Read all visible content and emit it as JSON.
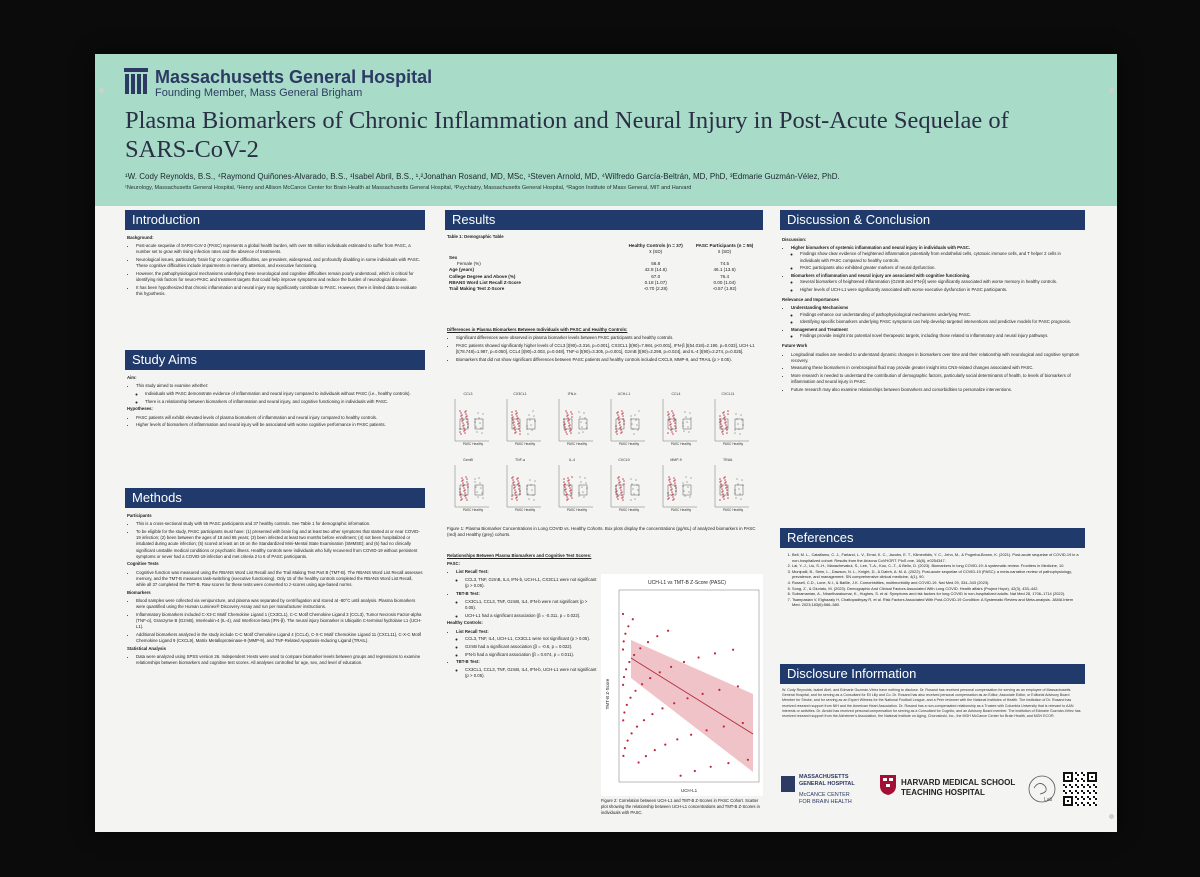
{
  "header": {
    "org_name": "Massachusetts General Hospital",
    "org_sub": "Founding Member, Mass General Brigham",
    "title": "Plasma Biomarkers of Chronic Inflammation and Neural Injury in Post-Acute Sequelae of SARS-CoV-2",
    "authors": "¹W. Cody Reynolds, B.S., ⁴Raymond Quiñones-Alvarado, B.S., ¹Isabel Abril, B.S., ¹,²Jonathan Rosand, MD, MSc, ¹Steven Arnold, MD, ⁴Wilfredo García-Beltrán, MD, PhD, ³Edmarie Guzmán-Vélez, PhD.",
    "affiliations": "¹Neurology, Massachusetts General Hospital, ²Henry and Allison McCance Center for Brain Health at Massachusetts General Hospital, ³Psychiatry, Massachusetts General Hospital, ⁴Ragon Institute of Mass General, MIT and Harvard"
  },
  "intro": {
    "heading": "Introduction",
    "sub": "Background:",
    "bullets": [
      "Post-acute sequelae of SARS-CoV-2 (PASC) represents a global health burden, with over 65 million individuals estimated to suffer from PASC, a number set to grow with rising infection rates and the absence of treatments.",
      "Neurological issues, particularly 'brain fog' or cognitive difficulties, are prevalent, widespread, and profoundly disabling in some individuals with PASC. These cognitive difficulties include impairments in memory, attention, and executive functioning.",
      "However, the pathophysiological mechanisms underlying these neurological and cognitive difficulties remain poorly understood, which is critical for identifying risk factors for neuro-PASC and treatment targets that could help improve symptoms and reduce the burden of neurological disease.",
      "It has been hypothesized that chronic inflammation and neural injury may significantly contribute to PASC. However, there is limited data to evaluate this hypothesis."
    ]
  },
  "aims": {
    "heading": "Study Aims",
    "aim_label": "Aim:",
    "aim_intro": "This study aimed to examine whether:",
    "aims": [
      "Individuals with PASC demonstrate evidence of inflammation and neural injury compared to individuals without PASC (i.e., healthy controls).",
      "There is a relationship between biomarkers of inflammation and neural injury, and cognitive functioning in individuals with PASC."
    ],
    "hyp_label": "Hypotheses:",
    "hyps": [
      "PASC patients will exhibit elevated levels of plasma biomarkers of inflammation and neural injury compared to healthy controls.",
      "Higher levels of biomarkers of inflammation and neural injury will be associated with worse cognitive performance in PASC patients."
    ]
  },
  "methods": {
    "heading": "Methods",
    "participants_label": "Participants",
    "participants": [
      "This is a cross-sectional study with 55 PASC participants and 37 healthy controls. See Table 1 for demographic information.",
      "To be eligible for the study, PASC participants must have: (1) presented with brain fog and at least two other symptoms that started at or near COVID-19 infection; (2) been between the ages of 18 and 65 years; (3) been infected at least two months before enrollment; (4) not been hospitalized or intubated during acute infection; (5) scored at least an 18 on the Standardized Mini-Mental State Examination (SMMSE); and (6) had no clinically significant unstable medical conditions or psychiatric illness. Healthy controls were individuals who fully recovered from COVID-19 without persistent symptoms or never had a COVID-19 infection and met criteria 2 to 6 of PASC participants."
    ],
    "cog_label": "Cognitive Tests",
    "cog": [
      "Cognitive function was measured using the RBANS Word List Recall and the Trail Making Test Part B (TMT-B). The RBANS Word List Recall assesses memory, and the TMT-B measures task-switching (executive functioning). Only 15 of the healthy controls completed the RBANS Word List Recall, while all 37 completed the TMT-B. Raw scores for these tests were converted to z-scores using age-based norms."
    ],
    "bio_label": "Biomarkers",
    "bio": [
      "Blood samples were collected via venipuncture, and plasma was separated by centrifugation and stored at -80°C until analysis. Plasma biomarkers were quantified using the Human Luminex® Discovery Assay and run per manufacturer instructions.",
      "Inflammatory biomarkers included C-X3-C Motif Chemokine Ligand 1 (CX3CL1), C-C Motif Chemokine Ligand 3 (CCL3), Tumor Necrosis Factor-alpha (TNF-α), Granzyme B (GzmB), Interleukin-4 (IL-4), and Interferon-beta (IFN-β). The neural injury biomarker is Ubiquitin C-terminal hydrolase L1 (UCH-L1).",
      "Additional biomarkers analyzed in the study include C-C Motif Chemokine Ligand 4 (CCL4), C-X-C Motif Chemokine Ligand 11 (CXCL11), C-X-C Motif Chemokine Ligand 9 (CXCL9), Matrix Metalloproteinase-9 (MMP-9), and TNF-Related Apoptosis-Inducing Ligand (TRAIL)."
    ],
    "stat_label": "Statistical Analysis",
    "stat": [
      "Data were analyzed using SPSS version 26. Independent t-tests were used to compare biomarker levels between groups and regressions to examine relationships between biomarkers and cognitive test scores. All analyses controlled for age, sex, and level of education."
    ]
  },
  "results": {
    "heading": "Results",
    "table_title": "Table 1: Demographic Table",
    "col_hc": "Healthy Controls (n = 37)",
    "col_pasc": "PASC Participants (n = 55)",
    "col_stat": "x̄ (SD)",
    "rows": [
      {
        "label": "Sex",
        "hc": "",
        "pasc": "",
        "bold": true
      },
      {
        "label": "Female (%)",
        "hc": "56.8",
        "pasc": "74.5",
        "bold": false
      },
      {
        "label": "Age (years)",
        "hc": "42.8 (14.6)",
        "pasc": "46.1 (13.6)",
        "bold": true
      },
      {
        "label": "College Degree and Above (%)",
        "hc": "67.0",
        "pasc": "76.4",
        "bold": true
      },
      {
        "label": "RBANS Word List Recall Z-Score",
        "hc": "0.18 (1.07)",
        "pasc": "0.00 (1.04)",
        "bold": true
      },
      {
        "label": "Trail Making Test Z-Score",
        "hc": "-0.70 (2.28)",
        "pasc": "-0.57 (1.92)",
        "bold": true
      }
    ],
    "diff_title": "Differences in Plasma Biomarkers Between Individuals with PASC and Healthy Controls:",
    "diff_bullets": [
      "Significant differences were observed in plasma biomarker levels between PASC participants and healthy controls.",
      "PASC patients showed significantly higher levels of CCL3 [t(90)=3.316, p=0.001], CX3CL1 [t(90)=7.984, p<0.001], IFN-β [t(54.018)=2.190, p=0.033], UCH-L1 [t(78.748)=1.987, p=0.050], CCL4 [t(90)=2.003, p=0.048], TNF-α [t(90)=3.305, p=0.001], GzmB [t(90)=2.298, p=0.024], and IL-4 [t(90)=2.274, p=0.025].",
      "Biomarkers that did not show significant differences between PASC patients and healthy controls included CXCL9, MMP-9, and TRAIL (p > 0.05)."
    ],
    "panels": [
      {
        "label": "CCL3"
      },
      {
        "label": "CX3CL1"
      },
      {
        "label": "IFN-b"
      },
      {
        "label": "UCH-L1"
      },
      {
        "label": "CCL4"
      },
      {
        "label": "CXCL11"
      },
      {
        "label": "GzmB"
      },
      {
        "label": "TNF-a"
      },
      {
        "label": "IL-4"
      },
      {
        "label": "CXCL9"
      },
      {
        "label": "MMP-9"
      },
      {
        "label": "TRAIL"
      }
    ],
    "panel_axis": "PASC  Healthy",
    "fig1_caption": "Figure 1: Plasma Biomarker Concentrations in Long COVID vs. Healthy Cohorts. Box plots display the concentrations (pg/mL) of analyzed biomarkers in PASC (red) and Healthy (grey) cohorts.",
    "rel_title": "Relationships Between Plasma Biomarkers and Cognitive Test Scores:",
    "pasc_label": "PASC:",
    "pasc_list_label": "List Recall Test:",
    "pasc_list": [
      "CCL3, TNF, GzmB, IL4, IFN-b, UCH-L1, CX3CL1 were not significant (p > 0.05)."
    ],
    "pasc_tmt_label": "TBT-B Test:",
    "pasc_tmt": [
      "CX3CL1, CCL3, TNF, GzmB, IL4, IFN-b were not significant (p > 0.05).",
      "UCH-L1 had a significant association (β = -0.311, p = 0.022)."
    ],
    "hc_label": "Healthy Controls:",
    "hc_list_label": "List Recall Test:",
    "hc_list": [
      "CCL3, TNF, IL4, UCH-L1, CX3CL1 were not significant (p > 0.05).",
      "GzmB had a significant association (β = -0.6, p = 0.022).",
      "IFN-b had a significant association (β = 0.674, p = 0.011)."
    ],
    "hc_tmt_label": "TBT-B Test:",
    "hc_tmt": [
      "CX3CL1, CCL3, TNF, GzmB, IL4, IFN-b, UCH-L1 were not significant (p > 0.05)."
    ],
    "scatter_title": "UCH-L1 vs TMT-B Z-Score (PASC)",
    "scatter_ylabel": "TMT-B Z-Score",
    "scatter_xlabel": "UCH-L1",
    "fig2_caption": "Figure 2: Correlation between UCH-L1 and TMT-B Z-Scores in PASC Cohort. Scatter plot showing the relationship between UCH-L1 concentrations and TMT-B Z-Scores in individuals with PASC."
  },
  "discussion": {
    "heading": "Discussion & Conclusion",
    "disc_label": "Discussion:",
    "items": [
      {
        "h": "Higher biomarkers of systemic inflammation and neural injury in individuals with PASC.",
        "sub": [
          "Findings show clear evidence of heightened inflammation potentially from endothelial cells, cytotoxic immune cells, and T helper 2 cells in individuals with PASC compared to healthy controls.",
          "PASC participants also exhibited greater markers of neural dysfunction."
        ]
      },
      {
        "h": "Biomarkers of inflammation and neural injury are associated with cognitive functioning.",
        "sub": [
          "Several biomarkers of heightened inflammation (GzmB and IFN-β) were significantly associated with worse memory in healthy controls.",
          "Higher levels of UCH-L1 were significantly associated with worse executive dysfunction in PASC participants."
        ]
      }
    ],
    "rel_label": "Relevance and Importances",
    "rel_items": [
      {
        "h": "Understanding Mechanisms",
        "sub": [
          "Findings enhance our understanding of pathophysiological mechanisms underlying PASC.",
          "Identifying specific biomarkers underlying PASC symptoms can help develop targeted interventions and predictive models for PASC prognosis."
        ]
      },
      {
        "h": "Management and Treatment",
        "sub": [
          "Findings provide insight into potential novel therapeutic targets, including those related to inflammatory and neural injury pathways."
        ]
      }
    ],
    "future_label": "Future Work",
    "future": [
      "Longitudinal studies are needed to understand dynamic changes in biomarkers over time and their relationship with neurological and cognitive symptom recovery.",
      "Measuring these biomarkers in cerebrospinal fluid may provide greater insight into CNS-related changes associated with PASC.",
      "More research is needed to understand the contribution of demographic factors, particularly social determinants of health, to levels of biomarkers of inflammation and neural injury in PASC.",
      "Future research may also examine relationships between biomarkers and comorbidities to personalize interventions."
    ]
  },
  "references": {
    "heading": "References",
    "items": [
      "Bell, M. L., Catalfamo, C. J., Farland, L. V., Ernst, K. C., Jacobs, E. T., Klimentidis, Y. C., Jehn, M., & Pogreba-Brown, K. (2021). Post-acute sequelae of COVID-19 in a non-hospitalized cohort: Results from the Arizona CoVHORT. PloS one, 16(8), e0254347.",
      "Lai, Y.-J., Liu, S.-H., Manachevakul, S., Lee, T.-A., Kuo, C.-T., & Bello, D. (2023). Biomarkers in long COVID-19: A systematic review. Frontiers in Medicine, 10.",
      "Munipalli, B., Seim, L., Dawson, N. L., Knight, D., & Dabrh, A. M. A. (2022). Post-acute sequelae of COVID-19 (PASC): a meta-narrative review of pathophysiology, prevalence, and management. SN comprehensive clinical medicine, 4(1), 90.",
      "Russell, C.D., Lone, N.I., & Baillie, J.K. Comorbidities, multimorbidity and COVID-19. Nat Med 29, 334–343 (2023).",
      "Song, Z., & Giuriato, M. (2023). Demographic And Clinical Factors Associated With Long COVID. Health affairs (Project Hope), 42(3), 433–442.",
      "Subramanian, A., Nirantharakumar, K., Hughes, S. et al. Symptoms and risk factors for long COVID in non-hospitalized adults. Nat Med 28, 1706–1714 (2022).",
      "Tsampasian V, Elghazaly H, Chattopadhyay R, et al. Risk Factors Associated With Post-COVID-19 Condition: A Systematic Review and Meta-analysis. JAMA Intern Med. 2023;183(6):566–580."
    ]
  },
  "disclosure": {
    "heading": "Disclosure Information",
    "text": "W. Cody Reynolds, Isabel Abril, and Edmarie Guzmán-Vélez have nothing to disclose. Dr. Rosand has received personal compensation for serving as an employee of Massachusetts General Hospital, and for serving as a Consultant for Eli Lilly and Co. Dr. Rosand has also received personal compensation as an Editor, Associate Editor, or Editorial Advisory Board Member for Stroke, and for serving as an Expert Witness for the National Football League, and a Peer reviewer with the National Institutes of Health. The institution of Dr. Rosand has received research support from NIH and the American Heart Association. Dr. Rosand has a non-compensated relationship as a Trustee with Columbia University that is relevant to AAN interests or activities. Dr. Arnold has received personal compensation for serving as a Consultant for Cognito, and an Advisory Board member. The institution of Edmarie Guzmán-Vélez has received research support from the Alzheimer's Association, the National Institute on Aging, Chorosinski, Inc., the MGH McCance Center for Brain Health, and MGH ECOR."
  },
  "logos": {
    "mgh_line1": "MASSACHUSETTS",
    "mgh_line2": "GENERAL HOSPITAL",
    "mccance_line1": "McCANCE CENTER",
    "mccance_line2": "FOR BRAIN HEALTH",
    "harvard_line1": "HARVARD MEDICAL SCHOOL",
    "harvard_line2": "TEACHING HOSPITAL",
    "lab": "Lab"
  },
  "colors": {
    "header_band": "#a8dcc8",
    "section_bar": "#1f3a6b",
    "pasc_red": "#c0283a",
    "healthy_grey": "#9a9a9a"
  }
}
